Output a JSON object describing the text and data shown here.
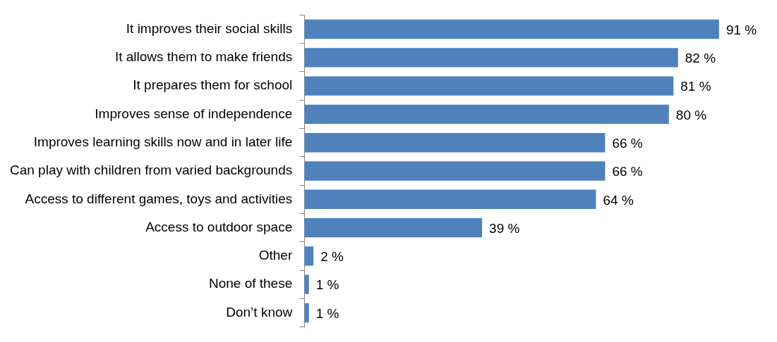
{
  "chart_data": {
    "type": "bar",
    "orientation": "horizontal",
    "categories": [
      "It improves their social skills",
      "It allows them to make friends",
      "It prepares them for school",
      "Improves sense of independence",
      "Improves learning skills now and in later life",
      "Can play with children from varied backgrounds",
      "Access to different games, toys and activities",
      "Access to outdoor space",
      "Other",
      "None of these",
      "Don’t know"
    ],
    "values": [
      91,
      82,
      81,
      80,
      66,
      66,
      64,
      39,
      2,
      1,
      1
    ],
    "value_labels": [
      "91 %",
      "82 %",
      "81 %",
      "80 %",
      "66 %",
      "66 %",
      "64 %",
      "39 %",
      "2 %",
      "1 %",
      "1 %"
    ],
    "color": "#4f81bd",
    "tick_labels": "y",
    "grid": false,
    "legend": false
  }
}
